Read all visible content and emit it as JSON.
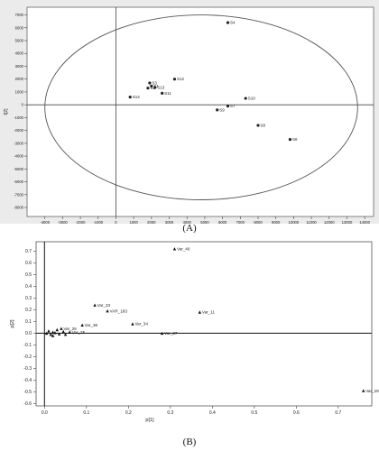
{
  "chart_data": [
    {
      "type": "scatter",
      "panel_label": "(A)",
      "xlabel": "t[1]",
      "ylabel": "t[2]",
      "xlim": [
        -5000,
        14500
      ],
      "ylim": [
        -8700,
        7600
      ],
      "grid": false,
      "x_ticks": [
        -4000,
        -3000,
        -2000,
        -1000,
        0,
        1000,
        2000,
        3000,
        4000,
        5000,
        6000,
        7000,
        8000,
        9000,
        10000,
        11000,
        12000,
        13000,
        14000
      ],
      "y_ticks": [
        -8000,
        -7000,
        -6000,
        -5000,
        -4000,
        -3000,
        -2000,
        -1000,
        0,
        1000,
        2000,
        3000,
        4000,
        5000,
        6000,
        7000
      ],
      "ellipse": {
        "cx": 4800,
        "cy": -200,
        "rx": 8800,
        "ry": 7200
      },
      "points": [
        {
          "label": "S4",
          "x": 6300,
          "y": 6400
        },
        {
          "label": "S12",
          "x": 3300,
          "y": 2000
        },
        {
          "label": "S3",
          "x": 1900,
          "y": 1700
        },
        {
          "label": "S1",
          "x": 2000,
          "y": 1450
        },
        {
          "label": "S13",
          "x": 2200,
          "y": 1350
        },
        {
          "label": "S2",
          "x": 1800,
          "y": 1300
        },
        {
          "label": "S11",
          "x": 2600,
          "y": 900
        },
        {
          "label": "S14",
          "x": 800,
          "y": 600
        },
        {
          "label": "S10",
          "x": 7300,
          "y": 500
        },
        {
          "label": "S7",
          "x": 6300,
          "y": -100
        },
        {
          "label": "S9",
          "x": 5700,
          "y": -400
        },
        {
          "label": "S8",
          "x": 8000,
          "y": -1600
        },
        {
          "label": "S6",
          "x": 9800,
          "y": -2700
        }
      ]
    },
    {
      "type": "scatter",
      "panel_label": "(B)",
      "xlabel": "p[1]",
      "ylabel": "p[2]",
      "xlim": [
        -0.02,
        0.78
      ],
      "ylim": [
        -0.62,
        0.78
      ],
      "grid": false,
      "x_ticks": [
        "0.0",
        "0.1",
        "0.2",
        "0.3",
        "0.4",
        "0.5",
        "0.6",
        "0.7"
      ],
      "y_ticks": [
        "0.7",
        "0.6",
        "0.5",
        "0.4",
        "0.3",
        "0.2",
        "0.1",
        "0.0",
        "-0.1",
        "-0.2",
        "-0.3",
        "-0.4",
        "-0.5",
        "-0.6"
      ],
      "points": [
        {
          "label": "Var_40",
          "x": 0.31,
          "y": 0.72
        },
        {
          "label": "Var_23",
          "x": 0.12,
          "y": 0.24
        },
        {
          "label": "VAR_183",
          "x": 0.15,
          "y": 0.19
        },
        {
          "label": "Var_11",
          "x": 0.37,
          "y": 0.18
        },
        {
          "label": "Var_34",
          "x": 0.21,
          "y": 0.08
        },
        {
          "label": "Var_27",
          "x": 0.28,
          "y": 0.0
        },
        {
          "label": "Var_36",
          "x": 0.09,
          "y": 0.07
        },
        {
          "label": "Var_26",
          "x": 0.04,
          "y": 0.04
        },
        {
          "label": "Var_25",
          "x": 0.06,
          "y": 0.01
        },
        {
          "label": "",
          "x": 0.01,
          "y": 0.02
        },
        {
          "label": "",
          "x": 0.02,
          "y": 0.01
        },
        {
          "label": "",
          "x": 0.03,
          "y": 0.03
        },
        {
          "label": "",
          "x": 0.015,
          "y": -0.01
        },
        {
          "label": "",
          "x": 0.025,
          "y": 0.005
        },
        {
          "label": "",
          "x": 0.035,
          "y": -0.005
        },
        {
          "label": "",
          "x": 0.045,
          "y": 0.015
        },
        {
          "label": "",
          "x": 0.005,
          "y": 0.0
        },
        {
          "label": "",
          "x": 0.05,
          "y": -0.01
        },
        {
          "label": "",
          "x": 0.02,
          "y": -0.02
        },
        {
          "label": "Var_29",
          "x": 0.76,
          "y": -0.49
        }
      ]
    }
  ]
}
